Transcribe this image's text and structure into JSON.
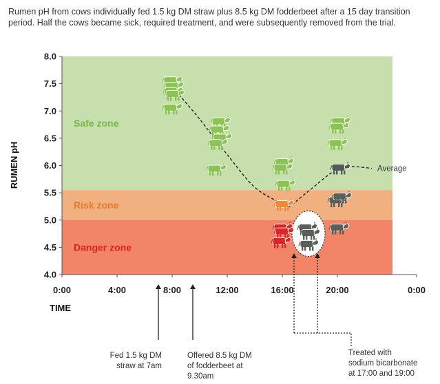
{
  "caption_lines": [
    "Rumen pH from cows individually fed 1.5 kg DM straw plus 8.5 kg DM fodderbeet after a 15 day transition",
    "period. Half the cows became sick, required treatment, and were subsequently removed from the trial."
  ],
  "chart_data": {
    "type": "scatter",
    "title": "",
    "xlabel": "TIME",
    "ylabel": "RUMEN pH",
    "xlim": [
      0,
      24
    ],
    "ylim": [
      4.0,
      8.0
    ],
    "x_ticks": [
      {
        "value": 0,
        "label": "0:00"
      },
      {
        "value": 4,
        "label": "4:00"
      },
      {
        "value": 8,
        "label": "8:00"
      },
      {
        "value": 12,
        "label": "12:00"
      },
      {
        "value": 16,
        "label": "16:00"
      },
      {
        "value": 20,
        "label": "20:00"
      },
      {
        "value": 24,
        "label": "0:00"
      }
    ],
    "y_ticks": [
      {
        "value": 4.0,
        "label": "4.0"
      },
      {
        "value": 4.5,
        "label": "4.5"
      },
      {
        "value": 5.0,
        "label": "5.0"
      },
      {
        "value": 5.5,
        "label": "5.5"
      },
      {
        "value": 6.0,
        "label": "6.0"
      },
      {
        "value": 6.5,
        "label": "6.5"
      },
      {
        "value": 7.0,
        "label": "7.0"
      },
      {
        "value": 7.5,
        "label": "7.5"
      },
      {
        "value": 8.0,
        "label": "8.0"
      }
    ],
    "zones": [
      {
        "label": "Safe zone",
        "from": 5.55,
        "to": 8.0,
        "color": "#c6dfad",
        "text_color": "#7ab648"
      },
      {
        "label": "Risk zone",
        "from": 5.0,
        "to": 5.55,
        "color": "#f0b080",
        "text_color": "#e8792a"
      },
      {
        "label": "Danger zone",
        "from": 4.0,
        "to": 5.0,
        "color": "#f28468",
        "text_color": "#e02020"
      }
    ],
    "points": [
      {
        "x": 8.0,
        "y": 7.55,
        "status": "safe"
      },
      {
        "x": 8.1,
        "y": 7.45,
        "status": "safe"
      },
      {
        "x": 8.05,
        "y": 7.35,
        "status": "safe"
      },
      {
        "x": 8.15,
        "y": 7.3,
        "status": "safe"
      },
      {
        "x": 8.0,
        "y": 7.05,
        "status": "safe"
      },
      {
        "x": 11.5,
        "y": 6.8,
        "status": "safe"
      },
      {
        "x": 11.4,
        "y": 6.65,
        "status": "safe"
      },
      {
        "x": 11.6,
        "y": 6.5,
        "status": "safe"
      },
      {
        "x": 11.3,
        "y": 6.4,
        "status": "safe"
      },
      {
        "x": 11.2,
        "y": 5.93,
        "status": "safe"
      },
      {
        "x": 16.1,
        "y": 6.05,
        "status": "safe"
      },
      {
        "x": 16.0,
        "y": 5.95,
        "status": "safe"
      },
      {
        "x": 16.2,
        "y": 5.65,
        "status": "safe"
      },
      {
        "x": 16.1,
        "y": 5.28,
        "status": "risk"
      },
      {
        "x": 16.0,
        "y": 4.85,
        "status": "danger"
      },
      {
        "x": 16.1,
        "y": 4.78,
        "status": "danger"
      },
      {
        "x": 15.9,
        "y": 4.6,
        "status": "danger"
      },
      {
        "x": 17.8,
        "y": 4.85,
        "status": "treated"
      },
      {
        "x": 18.0,
        "y": 4.75,
        "status": "treated"
      },
      {
        "x": 17.9,
        "y": 4.55,
        "status": "treated"
      },
      {
        "x": 20.2,
        "y": 6.8,
        "status": "safe"
      },
      {
        "x": 20.1,
        "y": 6.7,
        "status": "safe"
      },
      {
        "x": 20.0,
        "y": 6.4,
        "status": "safe"
      },
      {
        "x": 20.2,
        "y": 5.95,
        "status": "average"
      },
      {
        "x": 20.0,
        "y": 5.35,
        "status": "treated"
      },
      {
        "x": 20.3,
        "y": 5.42,
        "status": "treated"
      },
      {
        "x": 20.1,
        "y": 4.85,
        "status": "treated"
      }
    ],
    "average_line": {
      "label": "Average",
      "x": [
        8.5,
        10.0,
        12.0,
        14.0,
        16.0,
        16.5,
        18.0,
        20.2,
        22.5
      ],
      "y": [
        7.3,
        6.85,
        6.2,
        5.6,
        5.3,
        5.25,
        5.55,
        5.95,
        5.95
      ]
    },
    "treated_circle": {
      "x": 17.9,
      "y": 4.75
    },
    "annotations": [
      {
        "lines": [
          "Fed 1.5 kg DM",
          "straw at 7am"
        ],
        "x": 7.0,
        "align": "end"
      },
      {
        "lines": [
          "Offered 8.5 kg DM",
          "of fodderbeet at",
          "9.30am"
        ],
        "x": 9.5,
        "align": "start"
      },
      {
        "lines": [
          "Treated with",
          "sodium bicarbonate",
          "at 17:00 and 19:00"
        ],
        "x": [
          17.0,
          19.0
        ],
        "align": "start"
      }
    ],
    "colors": {
      "safe": "#8cc453",
      "risk": "#f08838",
      "danger": "#e02424",
      "treated": "#5a5f59",
      "average": "#555a55",
      "axis": "#555555"
    }
  }
}
